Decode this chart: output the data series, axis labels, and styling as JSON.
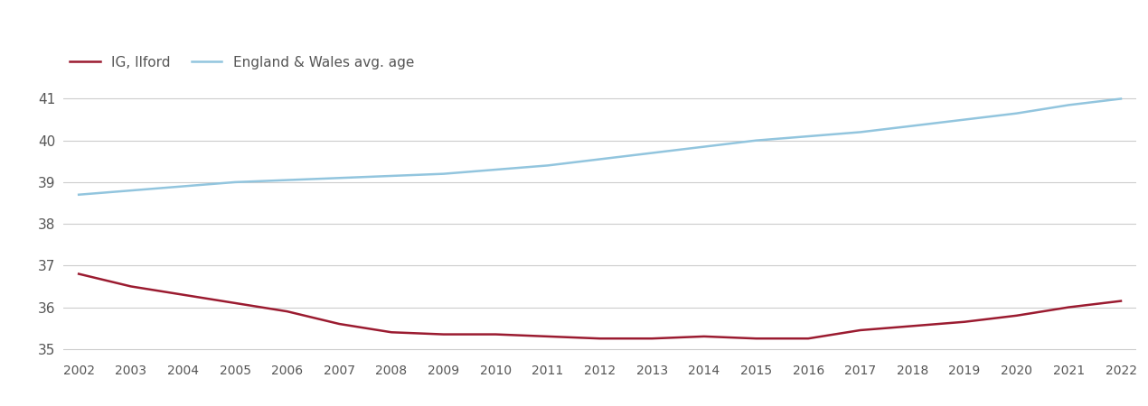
{
  "years": [
    2002,
    2003,
    2004,
    2005,
    2006,
    2007,
    2008,
    2009,
    2010,
    2011,
    2012,
    2013,
    2014,
    2015,
    2016,
    2017,
    2018,
    2019,
    2020,
    2021,
    2022
  ],
  "ilford": [
    36.8,
    36.5,
    36.3,
    36.1,
    35.9,
    35.6,
    35.4,
    35.35,
    35.35,
    35.3,
    35.25,
    35.25,
    35.3,
    35.25,
    35.25,
    35.45,
    35.55,
    35.65,
    35.8,
    36.0,
    36.15
  ],
  "england_wales": [
    38.7,
    38.8,
    38.9,
    39.0,
    39.05,
    39.1,
    39.15,
    39.2,
    39.3,
    39.4,
    39.55,
    39.7,
    39.85,
    40.0,
    40.1,
    40.2,
    40.35,
    40.5,
    40.65,
    40.85,
    41.0
  ],
  "ilford_color": "#9b1b30",
  "ew_color": "#92c5de",
  "background_color": "#ffffff",
  "grid_color": "#cccccc",
  "ylim": [
    34.8,
    42.2
  ],
  "yticks": [
    35,
    36,
    37,
    38,
    39,
    40,
    41
  ],
  "legend_labels": [
    "IG, Ilford",
    "England & Wales avg. age"
  ],
  "line_width": 1.8,
  "tick_label_color": "#555555",
  "figsize": [
    12.7,
    4.5
  ],
  "dpi": 100
}
